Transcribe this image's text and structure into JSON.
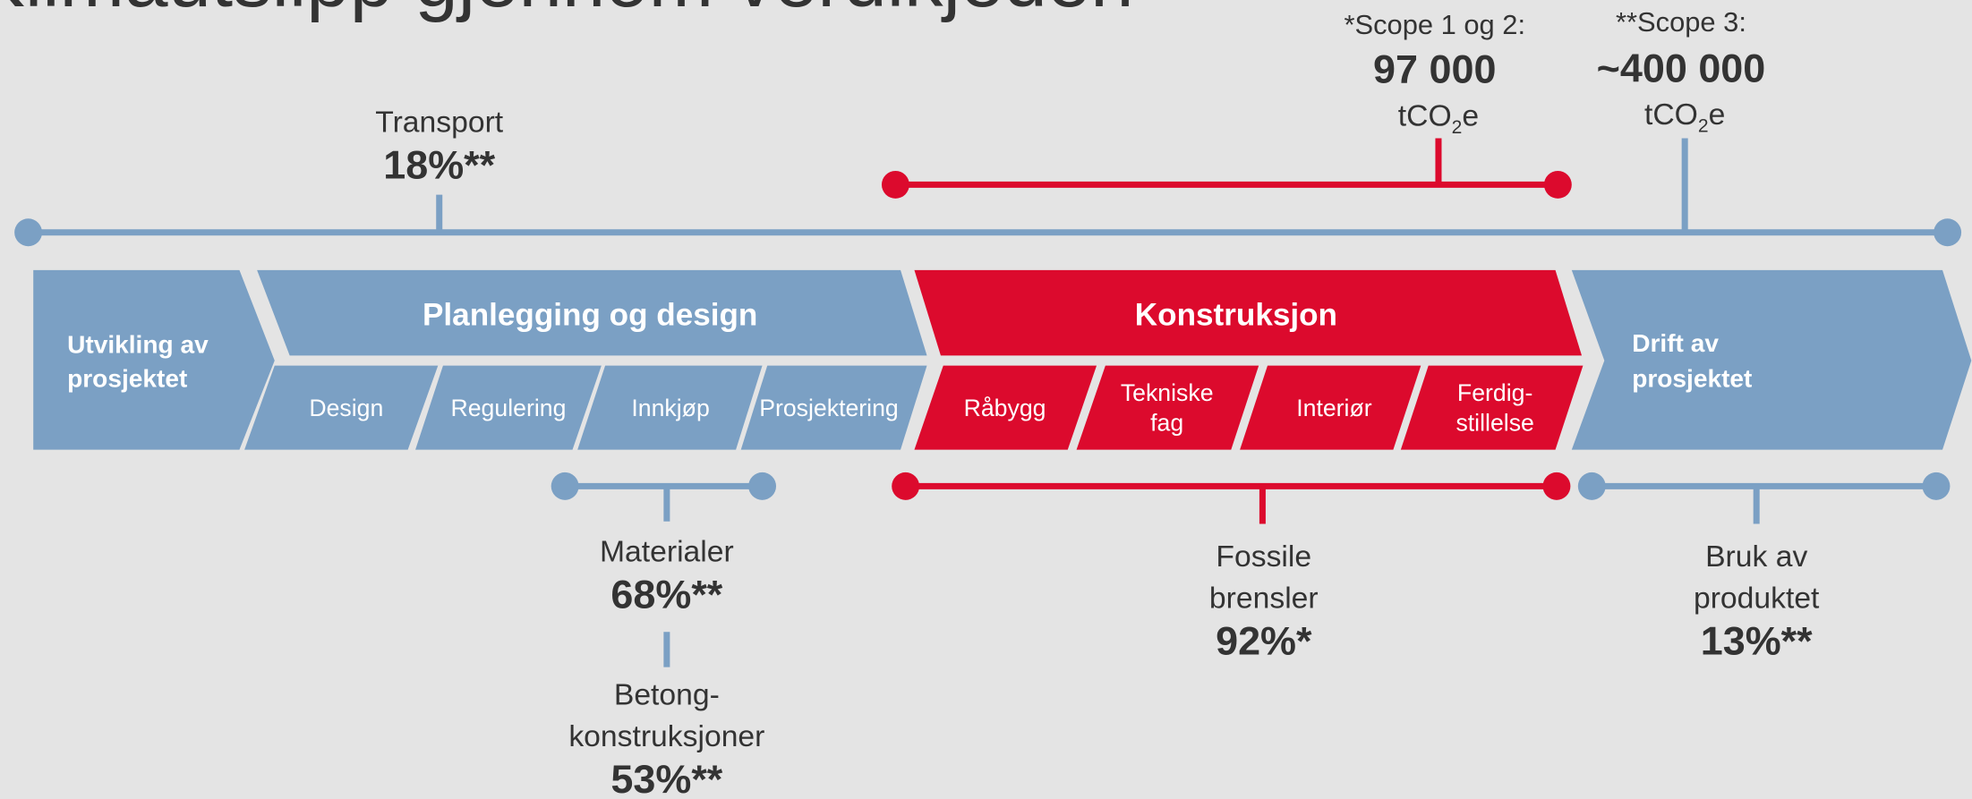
{
  "title": "Klimautslipp gjennom verdikjeden",
  "scope_1_2": {
    "label": "*Scope 1 og 2:",
    "value": "97 000",
    "unit": [
      "tCO",
      "2",
      "e"
    ]
  },
  "scope_3": {
    "label": "**Scope 3:",
    "value": "~400 000",
    "unit": [
      "tCO",
      "2",
      "e"
    ]
  },
  "phases": [
    {
      "label": [
        "Utvikling av",
        "prosjektet"
      ]
    },
    {
      "label": "Planlegging og design",
      "steps": [
        [
          "Design"
        ],
        [
          "Regulering"
        ],
        [
          "Innkjøp"
        ],
        [
          "Prosjektering"
        ]
      ]
    },
    {
      "label": "Konstruksjon",
      "steps": [
        [
          "Råbygg"
        ],
        [
          "Tekniske",
          "fag"
        ],
        [
          "Interiør"
        ],
        [
          "Ferdig-",
          "stillelse"
        ]
      ]
    },
    {
      "label": [
        "Drift av",
        "prosjektet"
      ]
    }
  ],
  "annotations": {
    "transport": {
      "label": [
        "Transport"
      ],
      "value": "18%**"
    },
    "materialer": {
      "label": [
        "Materialer"
      ],
      "value": "68%**"
    },
    "betong": {
      "label": [
        "Betong-",
        "konstruksjoner"
      ],
      "value": "53%**"
    },
    "fossile": {
      "label": [
        "Fossile",
        "brensler"
      ],
      "value": "92%*"
    },
    "bruk": {
      "label": [
        "Bruk av",
        "produktet"
      ],
      "value": "13%**"
    }
  }
}
